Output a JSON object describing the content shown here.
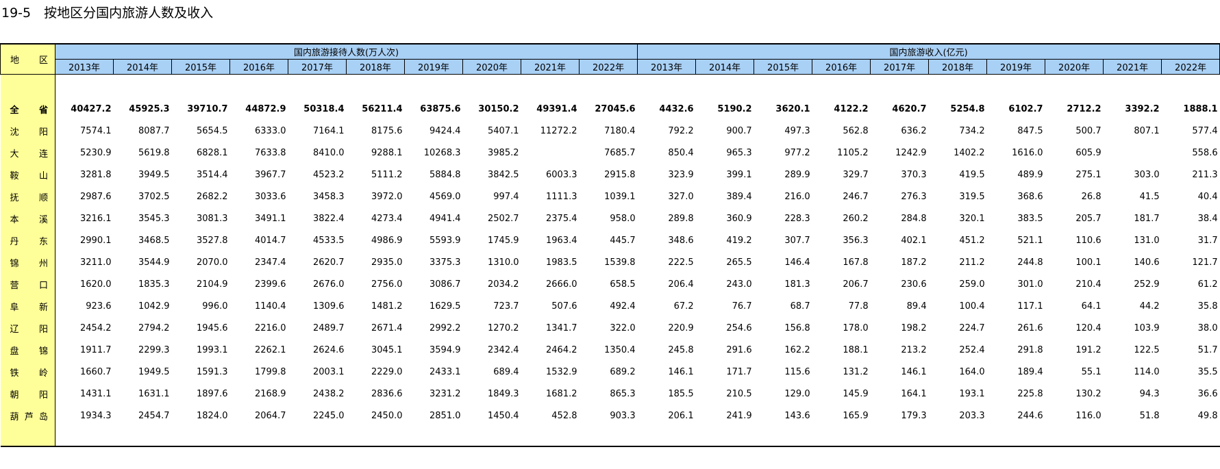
{
  "title": "19-5　按地区分国内旅游人数及收入",
  "table": {
    "region_header": "地区",
    "groups": [
      "国内旅游接待人数(万人次)",
      "国内旅游收入(亿元)"
    ],
    "years": [
      "2013年",
      "2014年",
      "2015年",
      "2016年",
      "2017年",
      "2018年",
      "2019年",
      "2020年",
      "2021年",
      "2022年"
    ],
    "rows": [
      [
        "全省",
        "40427.2",
        "45925.3",
        "39710.7",
        "44872.9",
        "50318.4",
        "56211.4",
        "63875.6",
        "30150.2",
        "49391.4",
        "27045.6",
        "4432.6",
        "5190.2",
        "3620.1",
        "4122.2",
        "4620.7",
        "5254.8",
        "6102.7",
        "2712.2",
        "3392.2",
        "1888.1"
      ],
      [
        "沈阳",
        "7574.1",
        "8087.7",
        "5654.5",
        "6333.0",
        "7164.1",
        "8175.6",
        "9424.4",
        "5407.1",
        "11272.2",
        "7180.4",
        "792.2",
        "900.7",
        "497.3",
        "562.8",
        "636.2",
        "734.2",
        "847.5",
        "500.7",
        "807.1",
        "577.4"
      ],
      [
        "大连",
        "5230.9",
        "5619.8",
        "6828.1",
        "7633.8",
        "8410.0",
        "9288.1",
        "10268.3",
        "3985.2",
        null,
        "7685.7",
        "850.4",
        "965.3",
        "977.2",
        "1105.2",
        "1242.9",
        "1402.2",
        "1616.0",
        "605.9",
        null,
        "558.6"
      ],
      [
        "鞍山",
        "3281.8",
        "3949.5",
        "3514.4",
        "3967.7",
        "4523.2",
        "5111.2",
        "5884.8",
        "3842.5",
        "6003.3",
        "2915.8",
        "323.9",
        "399.1",
        "289.9",
        "329.7",
        "370.3",
        "419.5",
        "489.9",
        "275.1",
        "303.0",
        "211.3"
      ],
      [
        "抚顺",
        "2987.6",
        "3702.5",
        "2682.2",
        "3033.6",
        "3458.3",
        "3972.0",
        "4569.0",
        "997.4",
        "1111.3",
        "1039.1",
        "327.0",
        "389.4",
        "216.0",
        "246.7",
        "276.3",
        "319.5",
        "368.6",
        "26.8",
        "41.5",
        "40.4"
      ],
      [
        "本溪",
        "3216.1",
        "3545.3",
        "3081.3",
        "3491.1",
        "3822.4",
        "4273.4",
        "4941.4",
        "2502.7",
        "2375.4",
        "958.0",
        "289.8",
        "360.9",
        "228.3",
        "260.2",
        "284.8",
        "320.1",
        "383.5",
        "205.7",
        "181.7",
        "38.4"
      ],
      [
        "丹东",
        "2990.1",
        "3468.5",
        "3527.8",
        "4014.7",
        "4533.5",
        "4986.9",
        "5593.9",
        "1745.9",
        "1963.4",
        "445.7",
        "348.6",
        "419.2",
        "307.7",
        "356.3",
        "402.1",
        "451.2",
        "521.1",
        "110.6",
        "131.0",
        "31.7"
      ],
      [
        "锦州",
        "3211.0",
        "3544.9",
        "2070.0",
        "2347.4",
        "2620.7",
        "2935.0",
        "3375.3",
        "1310.0",
        "1983.5",
        "1539.8",
        "222.5",
        "265.5",
        "146.4",
        "167.8",
        "187.2",
        "211.2",
        "244.8",
        "100.1",
        "140.6",
        "121.7"
      ],
      [
        "营口",
        "1620.0",
        "1835.3",
        "2104.9",
        "2399.6",
        "2676.0",
        "2756.0",
        "3086.7",
        "2034.2",
        "2666.0",
        "658.5",
        "206.4",
        "243.0",
        "181.3",
        "206.7",
        "230.6",
        "259.0",
        "301.0",
        "210.4",
        "252.9",
        "61.2"
      ],
      [
        "阜新",
        "923.6",
        "1042.9",
        "996.0",
        "1140.4",
        "1309.6",
        "1481.2",
        "1629.5",
        "723.7",
        "507.6",
        "492.4",
        "67.2",
        "76.7",
        "68.7",
        "77.8",
        "89.4",
        "100.4",
        "117.1",
        "64.1",
        "44.2",
        "35.8"
      ],
      [
        "辽阳",
        "2454.2",
        "2794.2",
        "1945.6",
        "2216.0",
        "2489.7",
        "2671.4",
        "2992.2",
        "1270.2",
        "1341.7",
        "322.0",
        "220.9",
        "254.6",
        "156.8",
        "178.0",
        "198.2",
        "224.7",
        "261.6",
        "120.4",
        "103.9",
        "38.0"
      ],
      [
        "盘锦",
        "1911.7",
        "2299.3",
        "1993.1",
        "2262.1",
        "2624.6",
        "3045.1",
        "3594.9",
        "2342.4",
        "2464.2",
        "1350.4",
        "245.8",
        "291.6",
        "162.2",
        "188.1",
        "213.2",
        "252.4",
        "291.8",
        "191.2",
        "122.5",
        "51.7"
      ],
      [
        "铁岭",
        "1660.7",
        "1949.5",
        "1591.3",
        "1799.8",
        "2003.1",
        "2229.0",
        "2433.1",
        "689.4",
        "1532.9",
        "689.2",
        "146.1",
        "171.7",
        "115.6",
        "131.2",
        "146.1",
        "164.0",
        "189.4",
        "55.1",
        "114.0",
        "35.5"
      ],
      [
        "朝阳",
        "1431.1",
        "1631.1",
        "1897.6",
        "2168.9",
        "2438.2",
        "2836.6",
        "3231.2",
        "1849.3",
        "1681.2",
        "865.3",
        "185.5",
        "210.5",
        "129.0",
        "145.9",
        "164.1",
        "193.1",
        "225.8",
        "130.2",
        "94.3",
        "36.6"
      ],
      [
        "葫芦岛",
        "1934.3",
        "2454.7",
        "1824.0",
        "2064.7",
        "2245.0",
        "2450.0",
        "2851.0",
        "1450.4",
        "452.8",
        "903.3",
        "206.1",
        "241.9",
        "143.6",
        "165.9",
        "179.3",
        "203.3",
        "244.6",
        "116.0",
        "51.8",
        "49.8"
      ]
    ]
  }
}
